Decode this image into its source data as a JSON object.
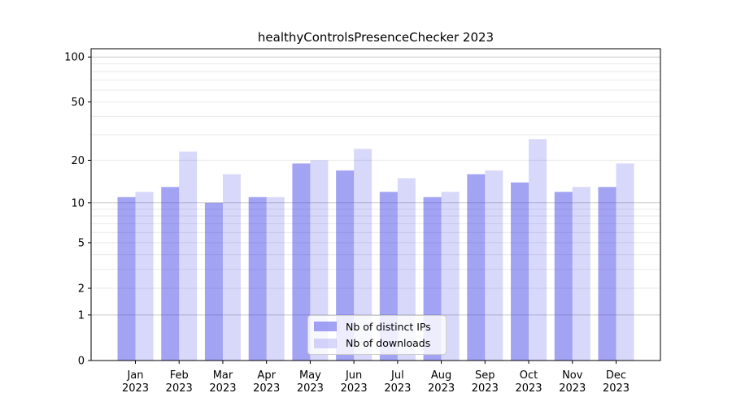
{
  "title": "healthyControlsPresenceChecker 2023",
  "chart_data": {
    "type": "bar",
    "title": "healthyControlsPresenceChecker 2023",
    "categories": [
      "Jan 2023",
      "Feb 2023",
      "Mar 2023",
      "Apr 2023",
      "May 2023",
      "Jun 2023",
      "Jul 2023",
      "Aug 2023",
      "Sep 2023",
      "Oct 2023",
      "Nov 2023",
      "Dec 2023"
    ],
    "series": [
      {
        "name": "Nb of distinct IPs",
        "color": "rgba(60,60,232,0.47)",
        "values": [
          11,
          13,
          10,
          11,
          19,
          17,
          12,
          11,
          16,
          14,
          12,
          13
        ]
      },
      {
        "name": "Nb of downloads",
        "color": "rgba(60,60,232,0.20)",
        "values": [
          12,
          23,
          16,
          11,
          20,
          24,
          15,
          12,
          17,
          28,
          13,
          19
        ]
      }
    ],
    "xlabel": "",
    "ylabel": "",
    "yscale": "log1p",
    "ylim": [
      0,
      113.6
    ],
    "y_tick_values": [
      100,
      50,
      20,
      10,
      5,
      2,
      1,
      0
    ],
    "y_tick_labels": [
      "100",
      "50",
      "20",
      "10",
      "5",
      "2",
      "1",
      "0"
    ],
    "y_major_gridlines": [
      1,
      10,
      100
    ],
    "y_minor_gridlines": [
      2,
      3,
      4,
      5,
      6,
      7,
      8,
      9,
      20,
      30,
      40,
      50,
      60,
      70,
      80,
      90
    ],
    "grid": true,
    "legend_position": "lower center",
    "colors": {
      "major_grid": "#c9c9c9",
      "minor_grid": "#e9e9e9",
      "axis": "#000000",
      "tick_text": "#000000",
      "background": "#ffffff"
    }
  }
}
